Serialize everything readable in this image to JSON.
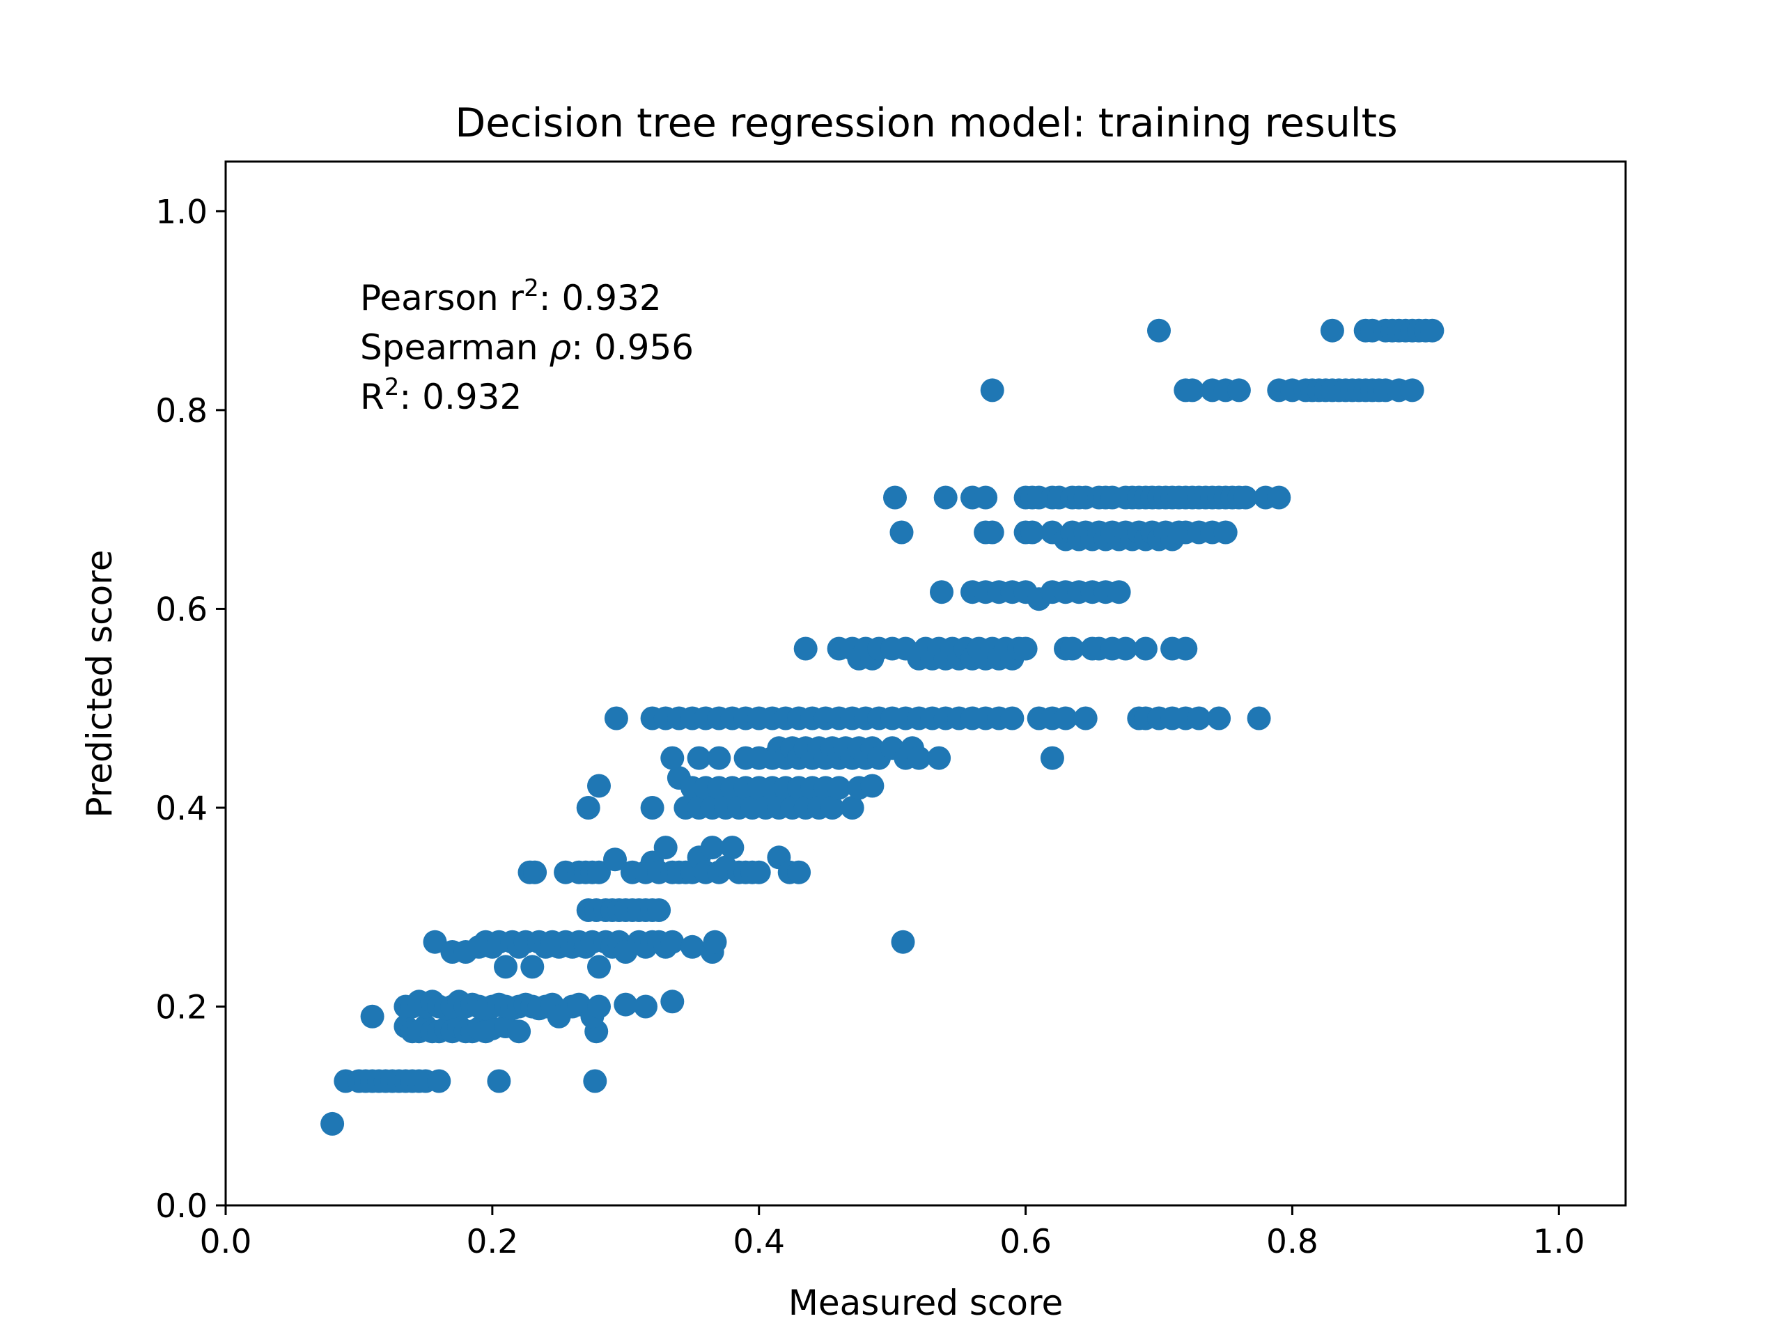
{
  "chart_data": {
    "type": "scatter",
    "title": "Decision tree regression model: training results",
    "xlabel": "Measured score",
    "ylabel": "Predicted score",
    "xlim": [
      0.0,
      1.05
    ],
    "ylim": [
      0.0,
      1.05
    ],
    "x_ticks": [
      "0.0",
      "0.2",
      "0.4",
      "0.6",
      "0.8",
      "1.0"
    ],
    "y_ticks": [
      "0.0",
      "0.2",
      "0.4",
      "0.6",
      "0.8",
      "1.0"
    ],
    "grid": false,
    "marker_color": "#1f77b4",
    "annotations": {
      "pearson_prefix": "Pearson r",
      "pearson_sup": "2",
      "pearson_value": ": 0.932",
      "spearman_prefix": "Spearman ",
      "spearman_symbol": "ρ",
      "spearman_value": ": 0.956",
      "r2_prefix": "R",
      "r2_sup": "2",
      "r2_value": ": 0.932"
    },
    "points": [
      [
        0.08,
        0.082
      ],
      [
        0.09,
        0.125
      ],
      [
        0.1,
        0.125
      ],
      [
        0.105,
        0.125
      ],
      [
        0.11,
        0.125
      ],
      [
        0.115,
        0.125
      ],
      [
        0.12,
        0.125
      ],
      [
        0.125,
        0.125
      ],
      [
        0.13,
        0.125
      ],
      [
        0.135,
        0.125
      ],
      [
        0.14,
        0.125
      ],
      [
        0.145,
        0.125
      ],
      [
        0.15,
        0.125
      ],
      [
        0.16,
        0.125
      ],
      [
        0.205,
        0.125
      ],
      [
        0.277,
        0.125
      ],
      [
        0.11,
        0.19
      ],
      [
        0.135,
        0.18
      ],
      [
        0.14,
        0.175
      ],
      [
        0.145,
        0.175
      ],
      [
        0.15,
        0.18
      ],
      [
        0.155,
        0.175
      ],
      [
        0.16,
        0.175
      ],
      [
        0.165,
        0.178
      ],
      [
        0.17,
        0.175
      ],
      [
        0.175,
        0.18
      ],
      [
        0.18,
        0.175
      ],
      [
        0.185,
        0.175
      ],
      [
        0.19,
        0.178
      ],
      [
        0.195,
        0.175
      ],
      [
        0.2,
        0.178
      ],
      [
        0.21,
        0.18
      ],
      [
        0.22,
        0.175
      ],
      [
        0.278,
        0.175
      ],
      [
        0.135,
        0.2
      ],
      [
        0.14,
        0.2
      ],
      [
        0.145,
        0.205
      ],
      [
        0.15,
        0.2
      ],
      [
        0.155,
        0.205
      ],
      [
        0.16,
        0.2
      ],
      [
        0.165,
        0.198
      ],
      [
        0.17,
        0.2
      ],
      [
        0.175,
        0.205
      ],
      [
        0.18,
        0.2
      ],
      [
        0.185,
        0.202
      ],
      [
        0.19,
        0.2
      ],
      [
        0.195,
        0.198
      ],
      [
        0.2,
        0.2
      ],
      [
        0.205,
        0.202
      ],
      [
        0.21,
        0.2
      ],
      [
        0.215,
        0.198
      ],
      [
        0.22,
        0.2
      ],
      [
        0.225,
        0.202
      ],
      [
        0.23,
        0.2
      ],
      [
        0.235,
        0.198
      ],
      [
        0.24,
        0.2
      ],
      [
        0.245,
        0.202
      ],
      [
        0.25,
        0.19
      ],
      [
        0.26,
        0.2
      ],
      [
        0.265,
        0.202
      ],
      [
        0.275,
        0.19
      ],
      [
        0.28,
        0.2
      ],
      [
        0.3,
        0.202
      ],
      [
        0.315,
        0.2
      ],
      [
        0.335,
        0.205
      ],
      [
        0.157,
        0.265
      ],
      [
        0.17,
        0.255
      ],
      [
        0.18,
        0.255
      ],
      [
        0.19,
        0.26
      ],
      [
        0.195,
        0.265
      ],
      [
        0.2,
        0.26
      ],
      [
        0.205,
        0.265
      ],
      [
        0.21,
        0.24
      ],
      [
        0.215,
        0.265
      ],
      [
        0.22,
        0.26
      ],
      [
        0.225,
        0.265
      ],
      [
        0.23,
        0.24
      ],
      [
        0.235,
        0.265
      ],
      [
        0.24,
        0.26
      ],
      [
        0.245,
        0.265
      ],
      [
        0.25,
        0.26
      ],
      [
        0.255,
        0.265
      ],
      [
        0.26,
        0.26
      ],
      [
        0.265,
        0.265
      ],
      [
        0.27,
        0.26
      ],
      [
        0.275,
        0.265
      ],
      [
        0.28,
        0.24
      ],
      [
        0.285,
        0.265
      ],
      [
        0.29,
        0.26
      ],
      [
        0.295,
        0.265
      ],
      [
        0.3,
        0.255
      ],
      [
        0.31,
        0.265
      ],
      [
        0.315,
        0.26
      ],
      [
        0.32,
        0.265
      ],
      [
        0.325,
        0.265
      ],
      [
        0.33,
        0.26
      ],
      [
        0.335,
        0.265
      ],
      [
        0.35,
        0.26
      ],
      [
        0.365,
        0.255
      ],
      [
        0.367,
        0.265
      ],
      [
        0.508,
        0.265
      ],
      [
        0.272,
        0.297
      ],
      [
        0.278,
        0.297
      ],
      [
        0.285,
        0.297
      ],
      [
        0.29,
        0.297
      ],
      [
        0.295,
        0.297
      ],
      [
        0.3,
        0.297
      ],
      [
        0.305,
        0.297
      ],
      [
        0.31,
        0.297
      ],
      [
        0.315,
        0.297
      ],
      [
        0.32,
        0.297
      ],
      [
        0.325,
        0.297
      ],
      [
        0.228,
        0.335
      ],
      [
        0.232,
        0.335
      ],
      [
        0.255,
        0.335
      ],
      [
        0.265,
        0.335
      ],
      [
        0.27,
        0.335
      ],
      [
        0.275,
        0.335
      ],
      [
        0.28,
        0.335
      ],
      [
        0.292,
        0.348
      ],
      [
        0.305,
        0.335
      ],
      [
        0.315,
        0.335
      ],
      [
        0.32,
        0.345
      ],
      [
        0.325,
        0.335
      ],
      [
        0.33,
        0.36
      ],
      [
        0.335,
        0.335
      ],
      [
        0.34,
        0.335
      ],
      [
        0.345,
        0.335
      ],
      [
        0.35,
        0.335
      ],
      [
        0.355,
        0.35
      ],
      [
        0.36,
        0.335
      ],
      [
        0.365,
        0.36
      ],
      [
        0.37,
        0.335
      ],
      [
        0.375,
        0.34
      ],
      [
        0.38,
        0.36
      ],
      [
        0.385,
        0.335
      ],
      [
        0.39,
        0.335
      ],
      [
        0.395,
        0.335
      ],
      [
        0.4,
        0.335
      ],
      [
        0.415,
        0.35
      ],
      [
        0.423,
        0.335
      ],
      [
        0.43,
        0.335
      ],
      [
        0.272,
        0.4
      ],
      [
        0.28,
        0.422
      ],
      [
        0.32,
        0.4
      ],
      [
        0.34,
        0.43
      ],
      [
        0.345,
        0.4
      ],
      [
        0.35,
        0.42
      ],
      [
        0.355,
        0.4
      ],
      [
        0.36,
        0.42
      ],
      [
        0.365,
        0.4
      ],
      [
        0.37,
        0.42
      ],
      [
        0.375,
        0.4
      ],
      [
        0.38,
        0.42
      ],
      [
        0.385,
        0.4
      ],
      [
        0.39,
        0.42
      ],
      [
        0.395,
        0.4
      ],
      [
        0.4,
        0.42
      ],
      [
        0.405,
        0.4
      ],
      [
        0.41,
        0.42
      ],
      [
        0.415,
        0.4
      ],
      [
        0.42,
        0.42
      ],
      [
        0.425,
        0.4
      ],
      [
        0.43,
        0.42
      ],
      [
        0.435,
        0.4
      ],
      [
        0.44,
        0.42
      ],
      [
        0.445,
        0.4
      ],
      [
        0.45,
        0.42
      ],
      [
        0.455,
        0.4
      ],
      [
        0.46,
        0.42
      ],
      [
        0.47,
        0.4
      ],
      [
        0.475,
        0.42
      ],
      [
        0.485,
        0.422
      ],
      [
        0.335,
        0.45
      ],
      [
        0.355,
        0.45
      ],
      [
        0.37,
        0.45
      ],
      [
        0.39,
        0.45
      ],
      [
        0.4,
        0.45
      ],
      [
        0.41,
        0.45
      ],
      [
        0.415,
        0.46
      ],
      [
        0.42,
        0.45
      ],
      [
        0.425,
        0.46
      ],
      [
        0.43,
        0.45
      ],
      [
        0.435,
        0.46
      ],
      [
        0.44,
        0.45
      ],
      [
        0.445,
        0.46
      ],
      [
        0.45,
        0.45
      ],
      [
        0.455,
        0.46
      ],
      [
        0.46,
        0.45
      ],
      [
        0.465,
        0.46
      ],
      [
        0.47,
        0.45
      ],
      [
        0.475,
        0.46
      ],
      [
        0.48,
        0.45
      ],
      [
        0.485,
        0.46
      ],
      [
        0.49,
        0.45
      ],
      [
        0.5,
        0.46
      ],
      [
        0.51,
        0.45
      ],
      [
        0.515,
        0.46
      ],
      [
        0.52,
        0.45
      ],
      [
        0.535,
        0.45
      ],
      [
        0.62,
        0.45
      ],
      [
        0.293,
        0.49
      ],
      [
        0.32,
        0.49
      ],
      [
        0.33,
        0.49
      ],
      [
        0.34,
        0.49
      ],
      [
        0.35,
        0.49
      ],
      [
        0.36,
        0.49
      ],
      [
        0.37,
        0.49
      ],
      [
        0.38,
        0.49
      ],
      [
        0.39,
        0.49
      ],
      [
        0.4,
        0.49
      ],
      [
        0.41,
        0.49
      ],
      [
        0.42,
        0.49
      ],
      [
        0.43,
        0.49
      ],
      [
        0.44,
        0.49
      ],
      [
        0.45,
        0.49
      ],
      [
        0.46,
        0.49
      ],
      [
        0.47,
        0.49
      ],
      [
        0.48,
        0.49
      ],
      [
        0.49,
        0.49
      ],
      [
        0.5,
        0.49
      ],
      [
        0.51,
        0.49
      ],
      [
        0.52,
        0.49
      ],
      [
        0.53,
        0.49
      ],
      [
        0.54,
        0.49
      ],
      [
        0.55,
        0.49
      ],
      [
        0.56,
        0.49
      ],
      [
        0.57,
        0.49
      ],
      [
        0.58,
        0.49
      ],
      [
        0.59,
        0.49
      ],
      [
        0.61,
        0.49
      ],
      [
        0.62,
        0.49
      ],
      [
        0.63,
        0.49
      ],
      [
        0.645,
        0.49
      ],
      [
        0.685,
        0.49
      ],
      [
        0.69,
        0.49
      ],
      [
        0.7,
        0.49
      ],
      [
        0.71,
        0.49
      ],
      [
        0.72,
        0.49
      ],
      [
        0.73,
        0.49
      ],
      [
        0.745,
        0.49
      ],
      [
        0.775,
        0.49
      ],
      [
        0.435,
        0.56
      ],
      [
        0.46,
        0.56
      ],
      [
        0.47,
        0.56
      ],
      [
        0.475,
        0.55
      ],
      [
        0.48,
        0.56
      ],
      [
        0.485,
        0.55
      ],
      [
        0.49,
        0.56
      ],
      [
        0.5,
        0.56
      ],
      [
        0.51,
        0.56
      ],
      [
        0.52,
        0.55
      ],
      [
        0.525,
        0.56
      ],
      [
        0.53,
        0.55
      ],
      [
        0.535,
        0.56
      ],
      [
        0.54,
        0.55
      ],
      [
        0.545,
        0.56
      ],
      [
        0.55,
        0.55
      ],
      [
        0.555,
        0.56
      ],
      [
        0.56,
        0.55
      ],
      [
        0.565,
        0.56
      ],
      [
        0.57,
        0.55
      ],
      [
        0.575,
        0.56
      ],
      [
        0.58,
        0.55
      ],
      [
        0.585,
        0.56
      ],
      [
        0.59,
        0.55
      ],
      [
        0.595,
        0.56
      ],
      [
        0.6,
        0.56
      ],
      [
        0.63,
        0.56
      ],
      [
        0.635,
        0.56
      ],
      [
        0.65,
        0.56
      ],
      [
        0.655,
        0.56
      ],
      [
        0.665,
        0.56
      ],
      [
        0.675,
        0.56
      ],
      [
        0.69,
        0.56
      ],
      [
        0.71,
        0.56
      ],
      [
        0.72,
        0.56
      ],
      [
        0.537,
        0.617
      ],
      [
        0.56,
        0.617
      ],
      [
        0.57,
        0.617
      ],
      [
        0.58,
        0.617
      ],
      [
        0.59,
        0.617
      ],
      [
        0.6,
        0.617
      ],
      [
        0.61,
        0.61
      ],
      [
        0.62,
        0.617
      ],
      [
        0.63,
        0.617
      ],
      [
        0.64,
        0.617
      ],
      [
        0.65,
        0.617
      ],
      [
        0.66,
        0.617
      ],
      [
        0.67,
        0.617
      ],
      [
        0.507,
        0.677
      ],
      [
        0.57,
        0.677
      ],
      [
        0.575,
        0.677
      ],
      [
        0.6,
        0.677
      ],
      [
        0.605,
        0.677
      ],
      [
        0.62,
        0.677
      ],
      [
        0.63,
        0.67
      ],
      [
        0.635,
        0.677
      ],
      [
        0.64,
        0.67
      ],
      [
        0.645,
        0.677
      ],
      [
        0.65,
        0.67
      ],
      [
        0.655,
        0.677
      ],
      [
        0.66,
        0.67
      ],
      [
        0.665,
        0.677
      ],
      [
        0.67,
        0.67
      ],
      [
        0.675,
        0.677
      ],
      [
        0.68,
        0.67
      ],
      [
        0.685,
        0.677
      ],
      [
        0.69,
        0.67
      ],
      [
        0.695,
        0.677
      ],
      [
        0.7,
        0.67
      ],
      [
        0.705,
        0.677
      ],
      [
        0.71,
        0.67
      ],
      [
        0.715,
        0.677
      ],
      [
        0.72,
        0.677
      ],
      [
        0.73,
        0.677
      ],
      [
        0.74,
        0.677
      ],
      [
        0.75,
        0.677
      ],
      [
        0.502,
        0.712
      ],
      [
        0.54,
        0.712
      ],
      [
        0.56,
        0.712
      ],
      [
        0.57,
        0.712
      ],
      [
        0.6,
        0.712
      ],
      [
        0.605,
        0.712
      ],
      [
        0.61,
        0.712
      ],
      [
        0.62,
        0.712
      ],
      [
        0.625,
        0.712
      ],
      [
        0.635,
        0.712
      ],
      [
        0.64,
        0.712
      ],
      [
        0.645,
        0.712
      ],
      [
        0.655,
        0.712
      ],
      [
        0.66,
        0.712
      ],
      [
        0.665,
        0.712
      ],
      [
        0.675,
        0.712
      ],
      [
        0.68,
        0.712
      ],
      [
        0.685,
        0.712
      ],
      [
        0.69,
        0.712
      ],
      [
        0.695,
        0.712
      ],
      [
        0.7,
        0.712
      ],
      [
        0.705,
        0.712
      ],
      [
        0.71,
        0.712
      ],
      [
        0.715,
        0.712
      ],
      [
        0.72,
        0.712
      ],
      [
        0.725,
        0.712
      ],
      [
        0.73,
        0.712
      ],
      [
        0.735,
        0.712
      ],
      [
        0.74,
        0.712
      ],
      [
        0.745,
        0.712
      ],
      [
        0.75,
        0.712
      ],
      [
        0.755,
        0.712
      ],
      [
        0.76,
        0.712
      ],
      [
        0.765,
        0.712
      ],
      [
        0.78,
        0.712
      ],
      [
        0.79,
        0.712
      ],
      [
        0.575,
        0.82
      ],
      [
        0.72,
        0.82
      ],
      [
        0.725,
        0.82
      ],
      [
        0.74,
        0.82
      ],
      [
        0.75,
        0.82
      ],
      [
        0.76,
        0.82
      ],
      [
        0.79,
        0.82
      ],
      [
        0.8,
        0.82
      ],
      [
        0.81,
        0.82
      ],
      [
        0.815,
        0.82
      ],
      [
        0.82,
        0.82
      ],
      [
        0.825,
        0.82
      ],
      [
        0.83,
        0.82
      ],
      [
        0.835,
        0.82
      ],
      [
        0.84,
        0.82
      ],
      [
        0.845,
        0.82
      ],
      [
        0.85,
        0.82
      ],
      [
        0.855,
        0.82
      ],
      [
        0.86,
        0.82
      ],
      [
        0.865,
        0.82
      ],
      [
        0.87,
        0.82
      ],
      [
        0.88,
        0.82
      ],
      [
        0.89,
        0.82
      ],
      [
        0.7,
        0.88
      ],
      [
        0.83,
        0.88
      ],
      [
        0.855,
        0.88
      ],
      [
        0.86,
        0.88
      ],
      [
        0.87,
        0.88
      ],
      [
        0.875,
        0.88
      ],
      [
        0.88,
        0.88
      ],
      [
        0.885,
        0.88
      ],
      [
        0.89,
        0.88
      ],
      [
        0.895,
        0.88
      ],
      [
        0.9,
        0.88
      ],
      [
        0.905,
        0.88
      ]
    ]
  }
}
